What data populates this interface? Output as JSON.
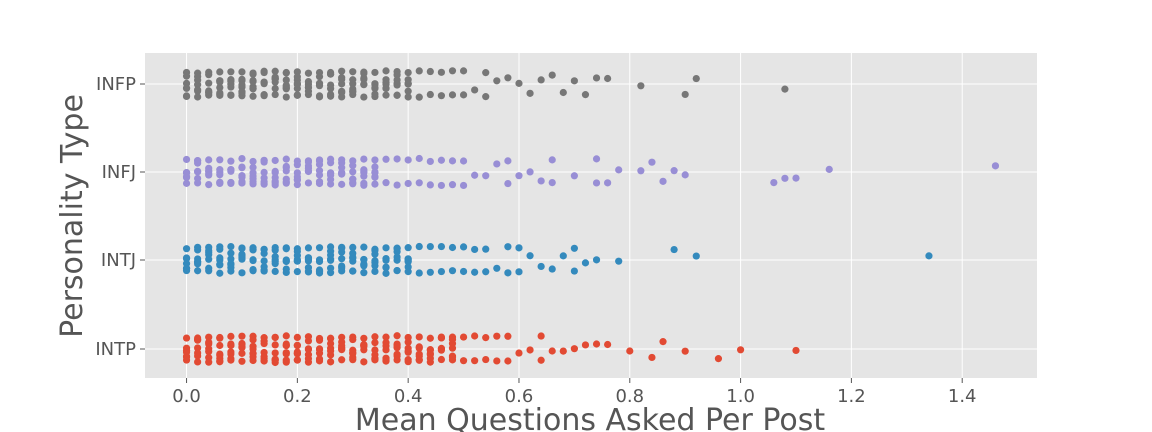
{
  "chart_data": {
    "type": "scatter",
    "subtype": "strip",
    "title": "",
    "xlabel": "Mean Questions Asked Per Post",
    "ylabel": "Personality Type",
    "xlim": [
      -0.075,
      1.535
    ],
    "xticks": [
      0.0,
      0.2,
      0.4,
      0.6,
      0.8,
      1.0,
      1.2,
      1.4
    ],
    "xtick_labels": [
      "0.0",
      "0.2",
      "0.4",
      "0.6",
      "0.8",
      "1.0",
      "1.2",
      "1.4"
    ],
    "categories": [
      "INFP",
      "INFJ",
      "INTJ",
      "INTP"
    ],
    "grid": true,
    "style": "ggplot",
    "background_color": "#e5e5e5",
    "grid_color": "#ffffff",
    "series": [
      {
        "category": "INFP",
        "color": "#777777",
        "x": [
          0.0,
          0.02,
          0.04,
          0.06,
          0.08,
          0.1,
          0.12,
          0.14,
          0.16,
          0.18,
          0.2,
          0.22,
          0.24,
          0.26,
          0.28,
          0.3,
          0.32,
          0.34,
          0.36,
          0.38,
          0.4,
          0.42,
          0.44,
          0.46,
          0.48,
          0.5,
          0.52,
          0.54,
          0.56,
          0.58,
          0.6,
          0.62,
          0.64,
          0.66,
          0.68,
          0.7,
          0.72,
          0.74,
          0.76,
          0.82,
          0.9,
          0.92,
          1.08
        ],
        "counts": [
          3,
          3,
          3,
          4,
          4,
          4,
          4,
          3,
          4,
          4,
          4,
          3,
          3,
          3,
          3,
          3,
          3,
          3,
          3,
          3,
          3,
          2,
          2,
          2,
          2,
          2,
          1,
          2,
          1,
          1,
          1,
          1,
          1,
          1,
          1,
          1,
          1,
          1,
          1,
          1,
          1,
          1,
          1
        ]
      },
      {
        "category": "INFJ",
        "color": "#988ed5",
        "x": [
          0.0,
          0.02,
          0.04,
          0.06,
          0.08,
          0.1,
          0.12,
          0.14,
          0.16,
          0.18,
          0.2,
          0.22,
          0.24,
          0.26,
          0.28,
          0.3,
          0.32,
          0.34,
          0.36,
          0.38,
          0.4,
          0.42,
          0.44,
          0.46,
          0.48,
          0.5,
          0.52,
          0.54,
          0.56,
          0.58,
          0.6,
          0.62,
          0.64,
          0.66,
          0.7,
          0.74,
          0.76,
          0.78,
          0.82,
          0.84,
          0.86,
          0.88,
          0.9,
          1.06,
          1.08,
          1.1,
          1.16,
          1.46
        ],
        "counts": [
          3,
          3,
          3,
          3,
          3,
          4,
          3,
          3,
          3,
          3,
          3,
          3,
          3,
          3,
          3,
          3,
          3,
          3,
          2,
          2,
          2,
          2,
          2,
          2,
          2,
          2,
          1,
          1,
          1,
          2,
          1,
          1,
          1,
          2,
          1,
          2,
          1,
          1,
          1,
          1,
          1,
          1,
          1,
          1,
          1,
          1,
          1,
          1
        ]
      },
      {
        "category": "INTJ",
        "color": "#348abd",
        "x": [
          0.0,
          0.02,
          0.04,
          0.06,
          0.08,
          0.1,
          0.12,
          0.14,
          0.16,
          0.18,
          0.2,
          0.22,
          0.24,
          0.26,
          0.28,
          0.3,
          0.32,
          0.34,
          0.36,
          0.38,
          0.4,
          0.42,
          0.44,
          0.46,
          0.48,
          0.5,
          0.52,
          0.54,
          0.56,
          0.58,
          0.6,
          0.62,
          0.64,
          0.66,
          0.68,
          0.7,
          0.72,
          0.74,
          0.78,
          0.88,
          0.92,
          1.34
        ],
        "counts": [
          3,
          3,
          3,
          3,
          3,
          3,
          3,
          3,
          3,
          3,
          3,
          3,
          3,
          3,
          3,
          3,
          3,
          3,
          3,
          3,
          3,
          2,
          2,
          2,
          2,
          2,
          2,
          2,
          1,
          2,
          2,
          1,
          1,
          1,
          1,
          2,
          1,
          1,
          1,
          1,
          1,
          1
        ]
      },
      {
        "category": "INTP",
        "color": "#e24a33",
        "x": [
          0.0,
          0.02,
          0.04,
          0.06,
          0.08,
          0.1,
          0.12,
          0.14,
          0.16,
          0.18,
          0.2,
          0.22,
          0.24,
          0.26,
          0.28,
          0.3,
          0.32,
          0.34,
          0.36,
          0.38,
          0.4,
          0.42,
          0.44,
          0.46,
          0.48,
          0.5,
          0.52,
          0.54,
          0.56,
          0.58,
          0.6,
          0.62,
          0.64,
          0.66,
          0.68,
          0.7,
          0.72,
          0.74,
          0.76,
          0.8,
          0.84,
          0.86,
          0.9,
          0.96,
          1.0,
          1.1
        ],
        "counts": [
          3,
          3,
          3,
          4,
          4,
          4,
          4,
          4,
          4,
          4,
          4,
          3,
          3,
          3,
          3,
          3,
          3,
          3,
          3,
          3,
          3,
          3,
          3,
          3,
          3,
          2,
          2,
          2,
          2,
          2,
          1,
          1,
          2,
          1,
          1,
          1,
          1,
          1,
          1,
          1,
          1,
          1,
          1,
          1,
          1,
          1
        ]
      }
    ]
  }
}
